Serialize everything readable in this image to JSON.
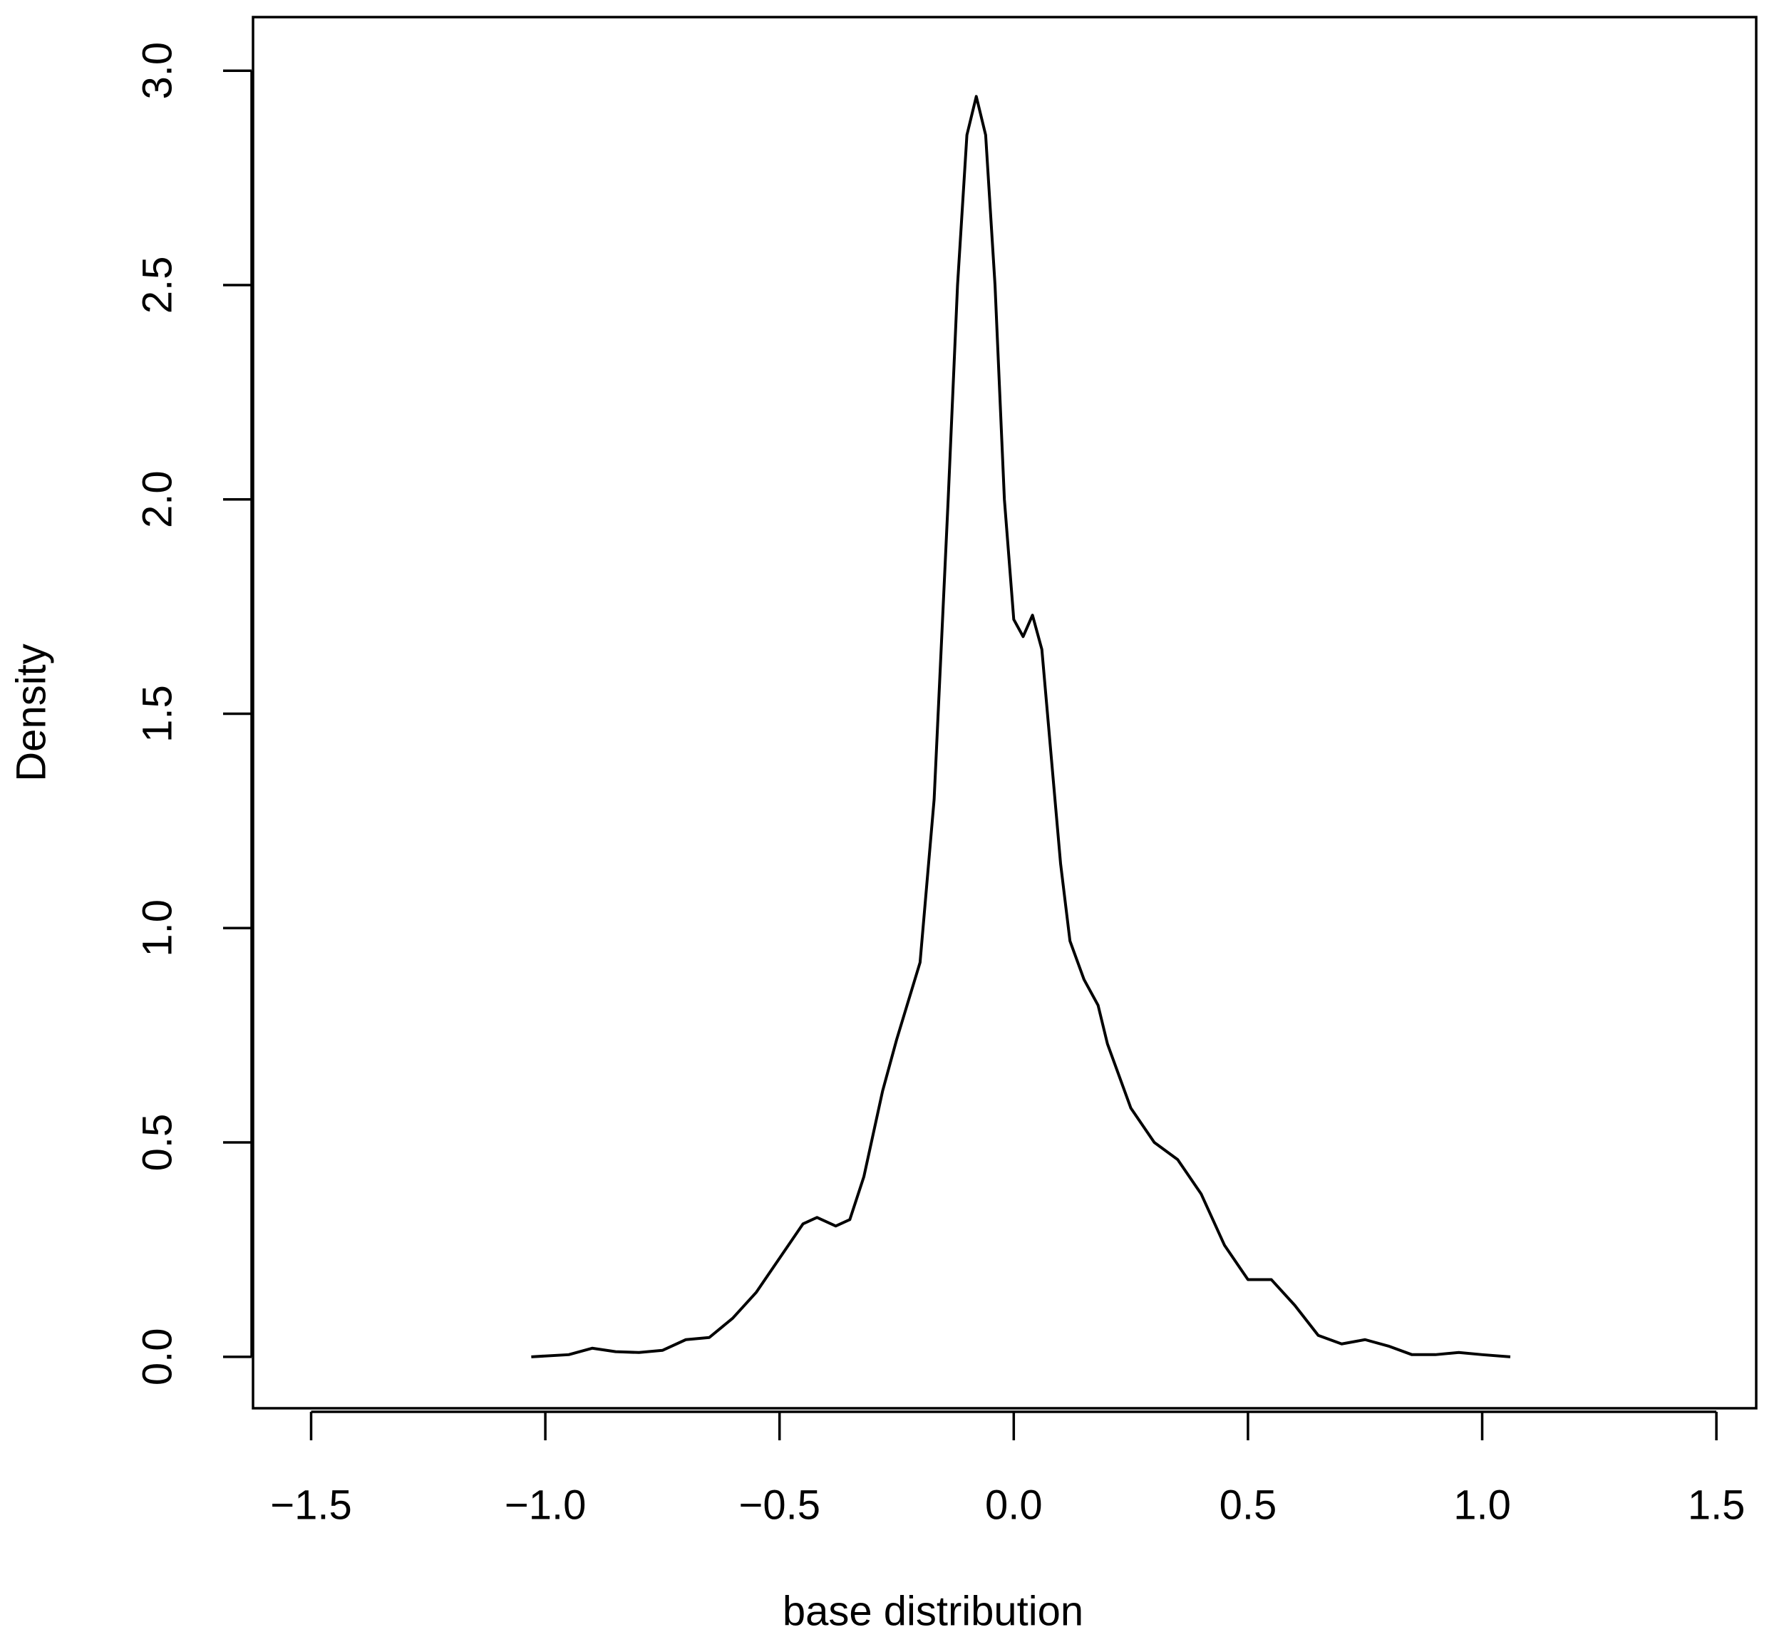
{
  "chart_data": {
    "type": "line",
    "xlabel": "base distribution",
    "ylabel": "Density",
    "color": "#000000",
    "x": [
      -1.03,
      -0.95,
      -0.9,
      -0.85,
      -0.8,
      -0.75,
      -0.7,
      -0.65,
      -0.6,
      -0.55,
      -0.5,
      -0.45,
      -0.42,
      -0.38,
      -0.35,
      -0.32,
      -0.28,
      -0.25,
      -0.2,
      -0.17,
      -0.14,
      -0.12,
      -0.1,
      -0.08,
      -0.06,
      -0.04,
      -0.02,
      0.0,
      0.02,
      0.04,
      0.06,
      0.08,
      0.1,
      0.12,
      0.15,
      0.18,
      0.2,
      0.25,
      0.3,
      0.35,
      0.4,
      0.45,
      0.5,
      0.55,
      0.6,
      0.65,
      0.7,
      0.75,
      0.8,
      0.85,
      0.9,
      0.95,
      1.0,
      1.06
    ],
    "values": [
      0,
      0.005,
      0.02,
      0.012,
      0.01,
      0.015,
      0.04,
      0.045,
      0.09,
      0.15,
      0.23,
      0.31,
      0.325,
      0.305,
      0.32,
      0.42,
      0.62,
      0.74,
      0.92,
      1.3,
      2.0,
      2.5,
      2.85,
      2.94,
      2.85,
      2.5,
      2.0,
      1.72,
      1.68,
      1.73,
      1.65,
      1.4,
      1.15,
      0.97,
      0.88,
      0.82,
      0.73,
      0.58,
      0.5,
      0.46,
      0.38,
      0.26,
      0.18,
      0.18,
      0.12,
      0.05,
      0.03,
      0.04,
      0.025,
      0.005,
      0.005,
      0.01,
      0.005,
      0
    ],
    "xlim": [
      -1.624,
      1.585
    ],
    "ylim": [
      -0.12,
      3.125
    ],
    "xticks": [
      {
        "value": -1.5,
        "label": "−1.5"
      },
      {
        "value": -1.0,
        "label": "−1.0"
      },
      {
        "value": -0.5,
        "label": "−0.5"
      },
      {
        "value": 0.0,
        "label": "0.0"
      },
      0.5,
      {
        "value": 1.0,
        "label": "1.0"
      },
      1.5
    ],
    "yticks": [
      {
        "value": 0.0,
        "label": "0.0"
      },
      0.5,
      {
        "value": 1.0,
        "label": "1.0"
      },
      1.5,
      {
        "value": 2.0,
        "label": "2.0"
      },
      2.5,
      {
        "value": 3.0,
        "label": "3.0"
      }
    ]
  }
}
